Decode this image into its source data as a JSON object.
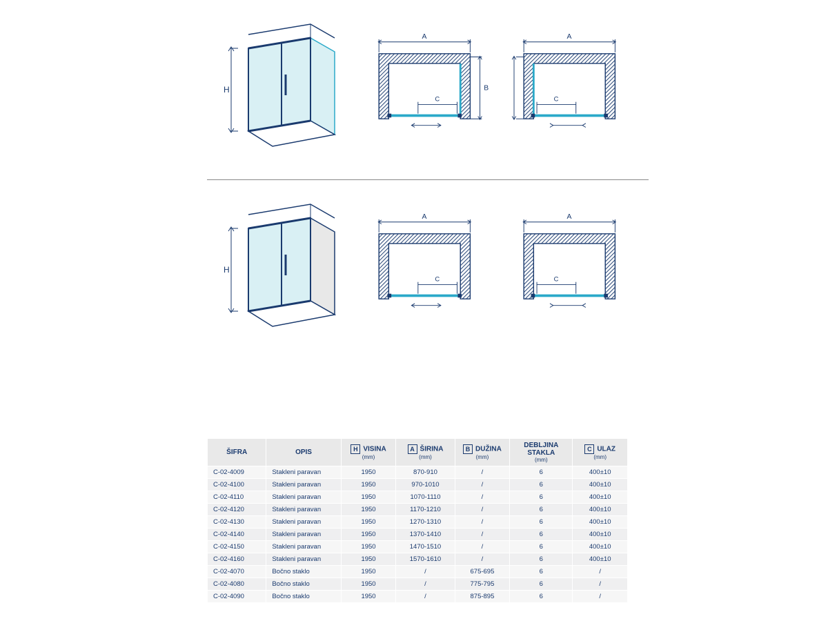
{
  "colors": {
    "line": "#1a3a6e",
    "glass_fill": "#d9f0f4",
    "glass_stroke": "#2aa9c9",
    "wall_hatch": "#1a3a6e",
    "side_panel": "#e8e8e8",
    "dim_text": "#1a3a6e"
  },
  "labels": {
    "H": "H",
    "A": "A",
    "B": "B",
    "C": "C"
  },
  "table": {
    "headers": {
      "sifra": "ŠIFRA",
      "opis": "OPIS",
      "visina": "VISINA",
      "sirina": "ŠIRINA",
      "duzina": "DUŽINA",
      "debljina": "DEBLJINA STAKLA",
      "ulaz": "ULAZ",
      "unit": "(mm)"
    },
    "rows": [
      {
        "sifra": "C-02-4009",
        "opis": "Stakleni paravan",
        "visina": "1950",
        "sirina": "870-910",
        "duzina": "/",
        "debljina": "6",
        "ulaz": "400±10"
      },
      {
        "sifra": "C-02-4100",
        "opis": "Stakleni paravan",
        "visina": "1950",
        "sirina": "970-1010",
        "duzina": "/",
        "debljina": "6",
        "ulaz": "400±10"
      },
      {
        "sifra": "C-02-4110",
        "opis": "Stakleni paravan",
        "visina": "1950",
        "sirina": "1070-1110",
        "duzina": "/",
        "debljina": "6",
        "ulaz": "400±10"
      },
      {
        "sifra": "C-02-4120",
        "opis": "Stakleni paravan",
        "visina": "1950",
        "sirina": "1170-1210",
        "duzina": "/",
        "debljina": "6",
        "ulaz": "400±10"
      },
      {
        "sifra": "C-02-4130",
        "opis": "Stakleni paravan",
        "visina": "1950",
        "sirina": "1270-1310",
        "duzina": "/",
        "debljina": "6",
        "ulaz": "400±10"
      },
      {
        "sifra": "C-02-4140",
        "opis": "Stakleni paravan",
        "visina": "1950",
        "sirina": "1370-1410",
        "duzina": "/",
        "debljina": "6",
        "ulaz": "400±10"
      },
      {
        "sifra": "C-02-4150",
        "opis": "Stakleni paravan",
        "visina": "1950",
        "sirina": "1470-1510",
        "duzina": "/",
        "debljina": "6",
        "ulaz": "400±10"
      },
      {
        "sifra": "C-02-4160",
        "opis": "Stakleni paravan",
        "visina": "1950",
        "sirina": "1570-1610",
        "duzina": "/",
        "debljina": "6",
        "ulaz": "400±10"
      },
      {
        "sifra": "C-02-4070",
        "opis": "Bočno staklo",
        "visina": "1950",
        "sirina": "/",
        "duzina": "675-695",
        "debljina": "6",
        "ulaz": "/"
      },
      {
        "sifra": "C-02-4080",
        "opis": "Bočno staklo",
        "visina": "1950",
        "sirina": "/",
        "duzina": "775-795",
        "debljina": "6",
        "ulaz": "/"
      },
      {
        "sifra": "C-02-4090",
        "opis": "Bočno staklo",
        "visina": "1950",
        "sirina": "/",
        "duzina": "875-895",
        "debljina": "6",
        "ulaz": "/"
      }
    ]
  },
  "diagram_rows": [
    {
      "iso_side_glass": true,
      "plan_has_B": true
    },
    {
      "iso_side_glass": false,
      "plan_has_B": false
    }
  ]
}
